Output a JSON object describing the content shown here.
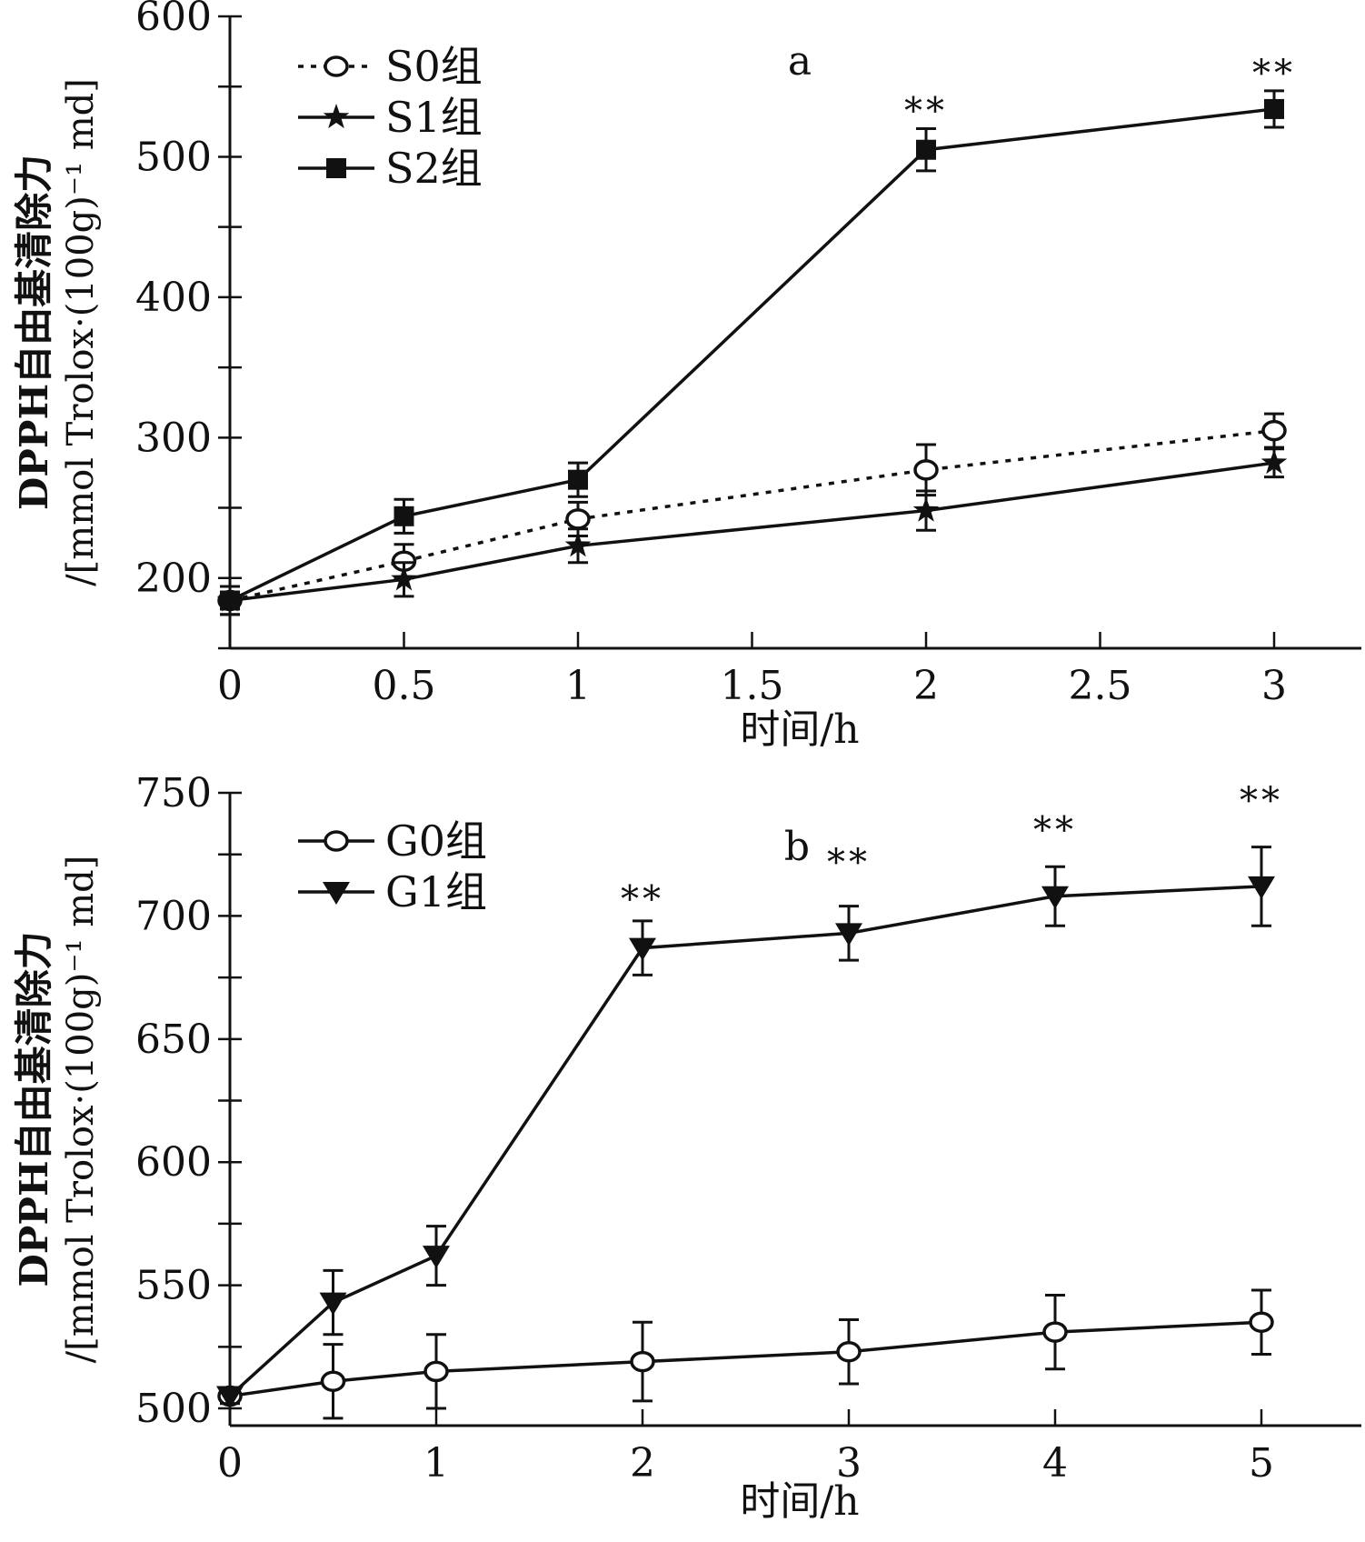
{
  "chart_data": [
    {
      "type": "line",
      "panel_label": "a",
      "xlabel": "时间/h",
      "ylabel": [
        "DPPH自由基清除力",
        "/[mmol Trolox·(100g)⁻¹ md]"
      ],
      "xlim": [
        0,
        3.25
      ],
      "ylim": [
        150,
        600
      ],
      "xticks": [
        0,
        0.5,
        1,
        1.5,
        2,
        2.5,
        3
      ],
      "xtick_labels": [
        "0",
        "0.5",
        "1",
        "1.5",
        "2",
        "2.5",
        "3"
      ],
      "yticks": [
        200,
        300,
        400,
        500,
        600
      ],
      "ytick_labels": [
        "200",
        "300",
        "400",
        "500",
        "600"
      ],
      "legend_position": "top-left",
      "series": [
        {
          "name": "S0组",
          "marker": "open-circle",
          "line": "dotted",
          "x": [
            0,
            0.5,
            1,
            2,
            3
          ],
          "y": [
            184,
            212,
            242,
            277,
            305
          ],
          "err": [
            10,
            12,
            12,
            18,
            12
          ]
        },
        {
          "name": "S1组",
          "marker": "star",
          "line": "solid",
          "x": [
            0,
            0.5,
            1,
            2,
            3
          ],
          "y": [
            184,
            199,
            223,
            248,
            282
          ],
          "err": [
            10,
            12,
            12,
            14,
            10
          ]
        },
        {
          "name": "S2组",
          "marker": "filled-square",
          "line": "solid",
          "x": [
            0,
            0.5,
            1,
            2,
            3
          ],
          "y": [
            184,
            244,
            270,
            505,
            534
          ],
          "err": [
            10,
            12,
            12,
            15,
            13
          ]
        }
      ],
      "annotations": [
        {
          "text": "**",
          "x": 2,
          "y": 533
        },
        {
          "text": "**",
          "x": 3,
          "y": 560
        }
      ]
    },
    {
      "type": "line",
      "panel_label": "b",
      "xlabel": "时间/h",
      "ylabel": [
        "DPPH自由基清除力",
        "/[mmol Trolox·(100g)⁻¹ md]"
      ],
      "xlim": [
        0,
        5.5
      ],
      "ylim": [
        493,
        750
      ],
      "xticks": [
        0,
        1,
        2,
        3,
        4,
        5
      ],
      "xtick_labels": [
        "0",
        "1",
        "2",
        "3",
        "4",
        "5"
      ],
      "yticks": [
        500,
        550,
        600,
        650,
        700,
        750
      ],
      "ytick_labels": [
        "500",
        "550",
        "600",
        "650",
        "700",
        "750"
      ],
      "legend_position": "top-left",
      "series": [
        {
          "name": "G0组",
          "marker": "open-circle",
          "line": "solid",
          "x": [
            0,
            0.5,
            1,
            2,
            3,
            4,
            5
          ],
          "y": [
            505,
            511,
            515,
            519,
            523,
            531,
            535
          ],
          "err": [
            3,
            15,
            15,
            16,
            13,
            15,
            13
          ]
        },
        {
          "name": "G1组",
          "marker": "filled-triangle-down",
          "line": "solid",
          "x": [
            0,
            0.5,
            1,
            2,
            3,
            4,
            5
          ],
          "y": [
            505,
            543,
            562,
            687,
            693,
            708,
            712
          ],
          "err": [
            3,
            13,
            12,
            11,
            11,
            12,
            16
          ]
        }
      ],
      "annotations": [
        {
          "text": "**",
          "x": 2,
          "y": 707
        },
        {
          "text": "**",
          "x": 3,
          "y": 722
        },
        {
          "text": "**",
          "x": 4,
          "y": 735
        },
        {
          "text": "**",
          "x": 5,
          "y": 747
        }
      ]
    }
  ]
}
